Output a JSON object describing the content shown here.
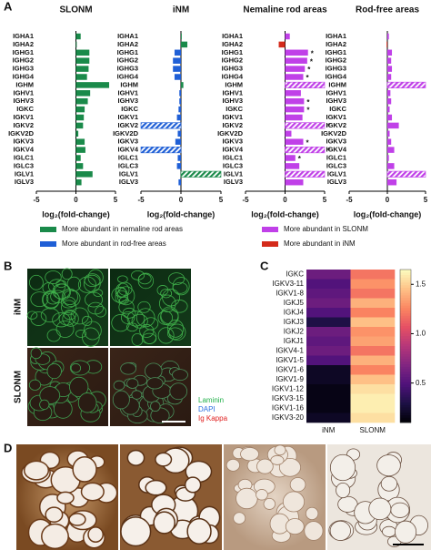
{
  "panels": [
    "A",
    "B",
    "C",
    "D"
  ],
  "legend": [
    {
      "name": "More abundant in nemaline rod areas",
      "color": "#1a8a4a"
    },
    {
      "name": "More abundant in rod-free areas",
      "color": "#1f5fd6"
    },
    {
      "name": "More abundant in SLONM",
      "color": "#c040e8"
    },
    {
      "name": "More abundant in iNM",
      "color": "#d42a1a"
    }
  ],
  "panel_b": {
    "rows": [
      "iNM",
      "SLONM"
    ],
    "stains": [
      {
        "name": "Laminin",
        "color": "#22b04a"
      },
      {
        "name": "DAPI",
        "color": "#2a6fe0"
      },
      {
        "name": "Ig Kappa",
        "color": "#e02020"
      }
    ]
  },
  "chart_data": [
    {
      "type": "bar",
      "title": "SLONM",
      "xlabel": "log₂(fold-change)",
      "categories": [
        "IGHA1",
        "IGHA2",
        "IGHG1",
        "IGHG2",
        "IGHG3",
        "IGHG4",
        "IGHM",
        "IGHV1",
        "IGHV3",
        "IGKC",
        "IGKV1",
        "IGKV2",
        "IGKV2D",
        "IGKV3",
        "IGKV4",
        "IGLC1",
        "IGLC3",
        "IGLV1",
        "IGLV3"
      ],
      "values": [
        0.6,
        0.1,
        1.7,
        1.7,
        1.6,
        1.4,
        4.2,
        1.8,
        1.5,
        1.1,
        1.0,
        0.9,
        0.3,
        1.1,
        1.2,
        0.6,
        0.9,
        2.1,
        0.7
      ],
      "hatched": [
        false,
        false,
        false,
        false,
        false,
        false,
        false,
        false,
        false,
        false,
        false,
        false,
        false,
        false,
        false,
        false,
        false,
        false,
        false
      ],
      "pos_color": "#1a8a4a",
      "neg_color": "#1f5fd6",
      "xlim": [
        -5,
        5
      ],
      "xticks": [
        -5,
        0,
        5
      ]
    },
    {
      "type": "bar",
      "title": "iNM",
      "xlabel": "log₂(fold-change)",
      "categories": [
        "IGHA1",
        "IGHA2",
        "IGHG1",
        "IGHG2",
        "IGHG3",
        "IGHG4",
        "IGHM",
        "IGHV1",
        "IGHV3",
        "IGKC",
        "IGKV1",
        "IGKV2",
        "IGKV2D",
        "IGKV3",
        "IGKV4",
        "IGLC1",
        "IGLC3",
        "IGLV1",
        "IGLV3"
      ],
      "values": [
        0.1,
        0.8,
        -0.8,
        -1.0,
        -1.0,
        -0.8,
        0.3,
        -0.2,
        -0.2,
        -0.3,
        -0.5,
        -5,
        -0.4,
        -0.7,
        -5,
        -0.4,
        -0.5,
        5,
        -0.3
      ],
      "hatched": [
        false,
        false,
        false,
        false,
        false,
        false,
        false,
        false,
        false,
        false,
        false,
        true,
        false,
        false,
        true,
        false,
        false,
        true,
        false
      ],
      "pos_color": "#1a8a4a",
      "neg_color": "#1f5fd6",
      "xlim": [
        -5,
        5
      ],
      "xticks": [
        -5,
        0,
        5
      ]
    },
    {
      "type": "bar",
      "title": "Nemaline rod areas",
      "xlabel": "log₂(fold-change)",
      "categories": [
        "IGHA1",
        "IGHA2",
        "IGHG1",
        "IGHG2",
        "IGHG3",
        "IGHG4",
        "IGHM",
        "IGHV1",
        "IGHV3",
        "IGKC",
        "IGKV1",
        "IGKV2",
        "IGKV2D",
        "IGKV3",
        "IGKV4",
        "IGLC1",
        "IGLC3",
        "IGLV1",
        "IGLV3"
      ],
      "values": [
        0.6,
        -0.8,
        2.9,
        2.8,
        2.5,
        2.3,
        5,
        2.0,
        2.4,
        2.4,
        2.2,
        5,
        0.8,
        2.3,
        5,
        1.3,
        1.8,
        5,
        2.3
      ],
      "hatched": [
        false,
        false,
        false,
        false,
        false,
        false,
        true,
        false,
        false,
        false,
        false,
        true,
        false,
        false,
        true,
        false,
        false,
        true,
        false
      ],
      "significance": [
        null,
        null,
        "*",
        "*",
        "*",
        "*",
        null,
        null,
        "*",
        "*",
        null,
        "*",
        null,
        "*",
        "*",
        "*",
        null,
        null,
        null
      ],
      "pos_color": "#c040e8",
      "neg_color": "#d42a1a",
      "xlim": [
        -5,
        5
      ],
      "xticks": [
        -5,
        0,
        5
      ]
    },
    {
      "type": "bar",
      "title": "Rod-free areas",
      "xlabel": "log₂(fold-change)",
      "categories": [
        "IGHA1",
        "IGHA2",
        "IGHG1",
        "IGHG2",
        "IGHG3",
        "IGHG4",
        "IGHM",
        "IGHV1",
        "IGHV3",
        "IGKC",
        "IGKV1",
        "IGKV2",
        "IGKV2D",
        "IGKV3",
        "IGKV4",
        "IGLC1",
        "IGLC3",
        "IGLV1",
        "IGLV3"
      ],
      "values": [
        0.2,
        -0.1,
        0.6,
        0.5,
        0.6,
        0.5,
        5,
        0.4,
        0.5,
        0.3,
        0.6,
        1.5,
        0.3,
        0.5,
        0.9,
        0.2,
        0.9,
        5,
        1.2
      ],
      "hatched": [
        false,
        false,
        false,
        false,
        false,
        false,
        true,
        false,
        false,
        false,
        false,
        false,
        false,
        false,
        false,
        false,
        false,
        true,
        false
      ],
      "pos_color": "#c040e8",
      "neg_color": "#d42a1a",
      "xlim": [
        -5,
        5
      ],
      "xticks": [
        -5,
        0,
        5
      ]
    },
    {
      "type": "heatmap",
      "colormap": "magma",
      "rows": [
        "IGKC",
        "IGKV3-11",
        "IGKV1-8",
        "IGKJ5",
        "IGKJ4",
        "IGKJ3",
        "IGKJ2",
        "IGKJ1",
        "IGKV4-1",
        "IGKV1-5",
        "IGKV1-6",
        "IGKV1-9",
        "IGKV1-12",
        "IGKV3-15",
        "IGKV1-16",
        "IGKV3-20"
      ],
      "columns": [
        "iNM",
        "SLONM"
      ],
      "values": [
        [
          0.6,
          1.2
        ],
        [
          0.5,
          1.3
        ],
        [
          0.55,
          1.2
        ],
        [
          0.6,
          1.4
        ],
        [
          0.5,
          1.25
        ],
        [
          0.3,
          1.45
        ],
        [
          0.6,
          1.3
        ],
        [
          0.55,
          1.35
        ],
        [
          0.6,
          1.2
        ],
        [
          0.5,
          1.4
        ],
        [
          0.2,
          1.25
        ],
        [
          0.2,
          1.45
        ],
        [
          0.15,
          1.55
        ],
        [
          0.15,
          1.6
        ],
        [
          0.15,
          1.6
        ],
        [
          0.2,
          1.55
        ]
      ],
      "clim": [
        0.1,
        1.65
      ],
      "cticks": [
        0.5,
        {
          "value": 1,
          "label": "1.0"
        },
        1.5
      ]
    }
  ]
}
